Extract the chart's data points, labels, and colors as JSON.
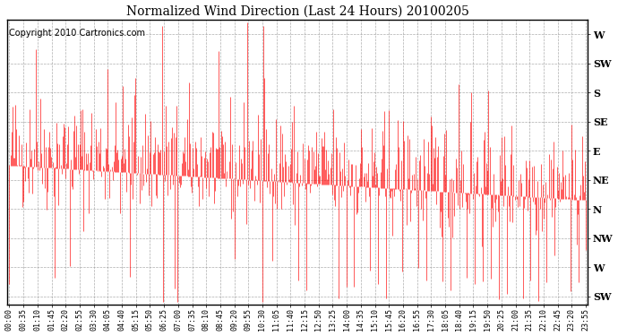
{
  "title": "Normalized Wind Direction (Last 24 Hours) 20100205",
  "copyright_text": "Copyright 2010 Cartronics.com",
  "line_color": "#ff0000",
  "background_color": "#ffffff",
  "plot_background": "#ffffff",
  "grid_color": "#999999",
  "ytick_labels": [
    "W",
    "SW",
    "S",
    "SE",
    "E",
    "NE",
    "N",
    "NW",
    "W",
    "SW"
  ],
  "ytick_values": [
    9,
    8,
    7,
    6,
    5,
    4,
    3,
    2,
    1,
    0
  ],
  "ylim": [
    -0.3,
    9.5
  ],
  "xtick_labels": [
    "00:00",
    "00:35",
    "01:10",
    "01:45",
    "02:20",
    "02:55",
    "03:30",
    "04:05",
    "04:40",
    "05:15",
    "05:50",
    "06:25",
    "07:00",
    "07:35",
    "08:10",
    "08:45",
    "09:20",
    "09:55",
    "10:30",
    "11:05",
    "11:40",
    "12:15",
    "12:50",
    "13:25",
    "14:00",
    "14:35",
    "15:10",
    "15:45",
    "16:20",
    "16:55",
    "17:30",
    "18:05",
    "18:40",
    "19:15",
    "19:50",
    "20:25",
    "21:00",
    "21:35",
    "22:10",
    "22:45",
    "23:20",
    "23:55"
  ],
  "seed": 42,
  "n_points": 576
}
